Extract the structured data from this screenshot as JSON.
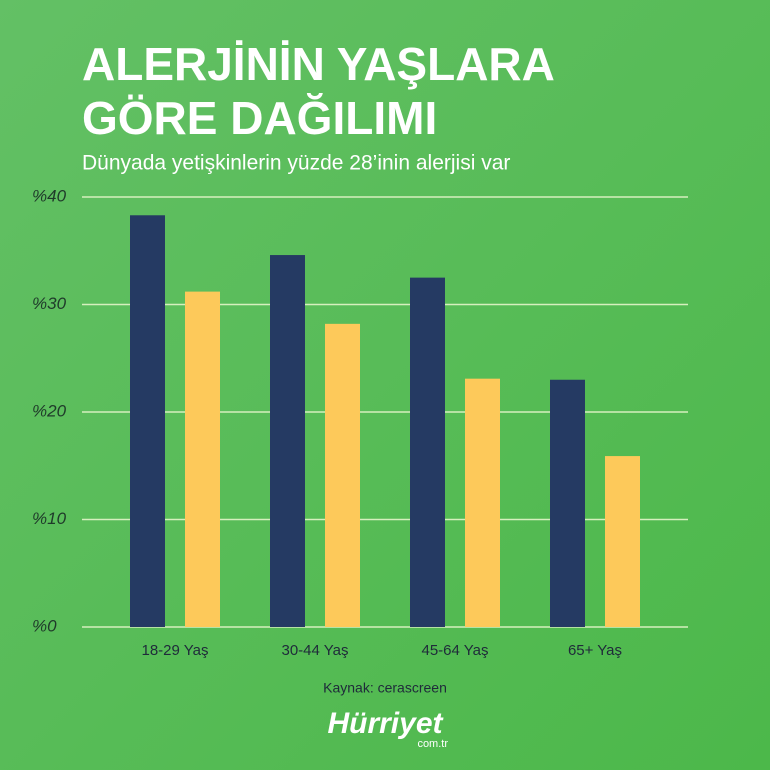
{
  "chart_data": {
    "type": "bar",
    "title": "ALERJİNİN YAŞLARA GÖRE DAĞILIMI",
    "subtitle": "Dünyada yetişkinlerin yüzde 28’inin alerjisi var",
    "categories": [
      "18-29 Yaş",
      "30-44 Yaş",
      "45-64 Yaş",
      "65+ Yaş"
    ],
    "series": [
      {
        "color": "#253a63",
        "values": [
          38.3,
          34.6,
          32.5,
          23.0
        ]
      },
      {
        "color": "#fdc95a",
        "values": [
          31.2,
          28.2,
          23.1,
          15.9
        ]
      }
    ],
    "ylim": [
      0,
      40
    ],
    "yticks": [
      {
        "value": 0,
        "label": "%0"
      },
      {
        "value": 10,
        "label": "%10"
      },
      {
        "value": 20,
        "label": "%20"
      },
      {
        "value": 30,
        "label": "%30"
      },
      {
        "value": 40,
        "label": "%40"
      }
    ],
    "grid": true,
    "source": "Kaynak: cerascreen",
    "logo": {
      "name": "Hürriyet",
      "domain": "com.tr"
    }
  }
}
